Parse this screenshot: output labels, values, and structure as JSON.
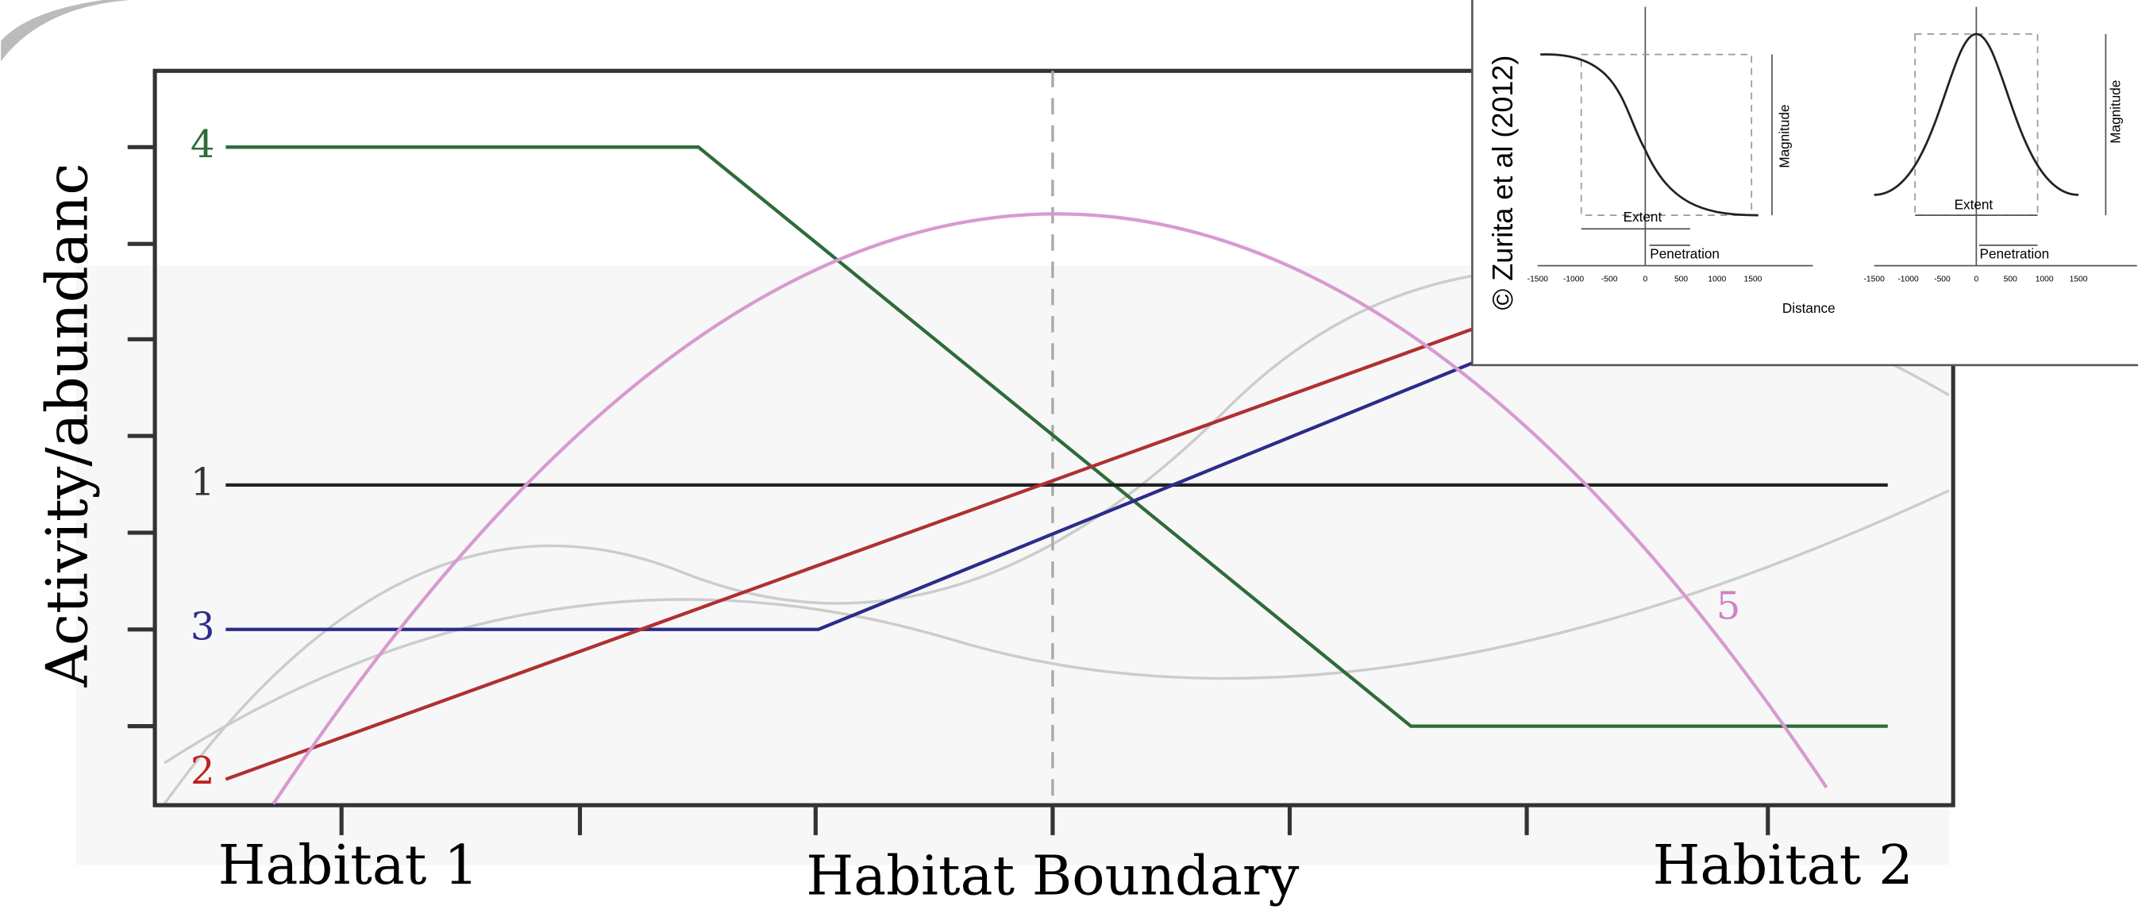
{
  "y_label": "Activity/abundanc",
  "x_labels": [
    "Habitat 1",
    "Habitat Boundary",
    "Habitat 2"
  ],
  "line_labels": [
    "1",
    "2",
    "3",
    "4",
    "5"
  ],
  "inset": {
    "credit": "© Zurita et al (2012)",
    "magnitude": [
      "Magnitude",
      "Magnitude"
    ],
    "extent": [
      "Extent",
      "Extent"
    ],
    "penetration": [
      "Penetration",
      "Penetration"
    ],
    "x_axis_label": "Distance",
    "ticks": [
      "-1500",
      "-1000",
      "-500",
      "0",
      "500",
      "1000",
      "1500"
    ]
  }
}
